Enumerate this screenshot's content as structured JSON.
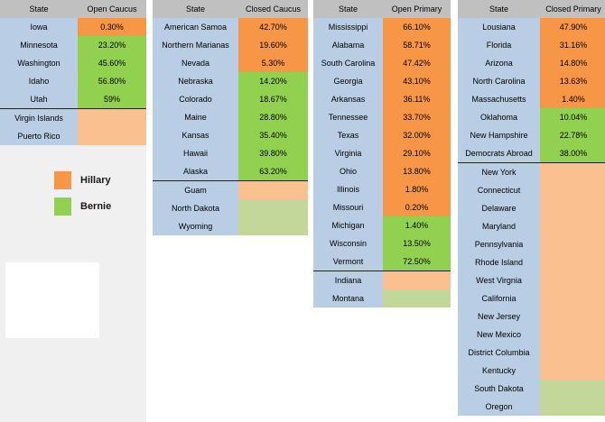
{
  "colors": {
    "hillary": "#f79646",
    "bernie": "#92d050",
    "pending_hillary": "#fac08f",
    "pending_bernie": "#c4d79b",
    "state_cell": "#b9cde4",
    "header": "#c0c0c0"
  },
  "legend": [
    {
      "label": "Hillary",
      "color": "hillary"
    },
    {
      "label": "Bernie",
      "color": "bernie"
    }
  ],
  "tables": [
    {
      "state_header": "State",
      "type_header": "Open Caucus",
      "rows": [
        {
          "state": "Iowa",
          "value": "0.30%",
          "winner": "hillary"
        },
        {
          "state": "Minnesota",
          "value": "23.20%",
          "winner": "bernie"
        },
        {
          "state": "Washington",
          "value": "45.60%",
          "winner": "bernie"
        },
        {
          "state": "Idaho",
          "value": "56.80%",
          "winner": "bernie"
        },
        {
          "state": "Utah",
          "value": "59%",
          "winner": "bernie"
        }
      ],
      "pending": [
        {
          "state": "Virgin Islands",
          "lean": "hillary"
        },
        {
          "state": "Puerto Rico",
          "lean": "hillary"
        }
      ]
    },
    {
      "state_header": "State",
      "type_header": "Closed Caucus",
      "rows": [
        {
          "state": "American Samoa",
          "value": "42.70%",
          "winner": "hillary"
        },
        {
          "state": "Northern Marianas",
          "value": "19.60%",
          "winner": "hillary"
        },
        {
          "state": "Nevada",
          "value": "5.30%",
          "winner": "hillary"
        },
        {
          "state": "Nebraska",
          "value": "14.20%",
          "winner": "bernie"
        },
        {
          "state": "Colorado",
          "value": "18.67%",
          "winner": "bernie"
        },
        {
          "state": "Maine",
          "value": "28.80%",
          "winner": "bernie"
        },
        {
          "state": "Kansas",
          "value": "35.40%",
          "winner": "bernie"
        },
        {
          "state": "Hawaii",
          "value": "39.80%",
          "winner": "bernie"
        },
        {
          "state": "Alaska",
          "value": "63.20%",
          "winner": "bernie"
        }
      ],
      "pending": [
        {
          "state": "Guam",
          "lean": "hillary"
        },
        {
          "state": "North Dakota",
          "lean": "bernie"
        },
        {
          "state": "Wyoming",
          "lean": "bernie"
        }
      ]
    },
    {
      "state_header": "State",
      "type_header": "Open Primary",
      "rows": [
        {
          "state": "Mississippi",
          "value": "66.10%",
          "winner": "hillary"
        },
        {
          "state": "Alabama",
          "value": "58.71%",
          "winner": "hillary"
        },
        {
          "state": "South Carolina",
          "value": "47.42%",
          "winner": "hillary"
        },
        {
          "state": "Georgia",
          "value": "43.10%",
          "winner": "hillary"
        },
        {
          "state": "Arkansas",
          "value": "36.11%",
          "winner": "hillary"
        },
        {
          "state": "Tennessee",
          "value": "33.70%",
          "winner": "hillary"
        },
        {
          "state": "Texas",
          "value": "32.00%",
          "winner": "hillary"
        },
        {
          "state": "Virginia",
          "value": "29.10%",
          "winner": "hillary"
        },
        {
          "state": "Ohio",
          "value": "13.80%",
          "winner": "hillary"
        },
        {
          "state": "Illinois",
          "value": "1.80%",
          "winner": "hillary"
        },
        {
          "state": "Missouri",
          "value": "0.20%",
          "winner": "hillary"
        },
        {
          "state": "Michigan",
          "value": "1.40%",
          "winner": "bernie"
        },
        {
          "state": "Wisconsin",
          "value": "13.50%",
          "winner": "bernie"
        },
        {
          "state": "Vermont",
          "value": "72.50%",
          "winner": "bernie"
        }
      ],
      "pending": [
        {
          "state": "Indiana",
          "lean": "hillary"
        },
        {
          "state": "Montana",
          "lean": "bernie"
        }
      ]
    },
    {
      "state_header": "State",
      "type_header": "Closed Primary",
      "rows": [
        {
          "state": "Lousiana",
          "value": "47.90%",
          "winner": "hillary"
        },
        {
          "state": "Florida",
          "value": "31.16%",
          "winner": "hillary"
        },
        {
          "state": "Arizona",
          "value": "14.80%",
          "winner": "hillary"
        },
        {
          "state": "North Carolina",
          "value": "13.63%",
          "winner": "hillary"
        },
        {
          "state": "Massachusetts",
          "value": "1.40%",
          "winner": "hillary"
        },
        {
          "state": "Oklahoma",
          "value": "10.04%",
          "winner": "bernie"
        },
        {
          "state": "New Hampshire",
          "value": "22.78%",
          "winner": "bernie"
        },
        {
          "state": "Democrats Abroad",
          "value": "38.00%",
          "winner": "bernie"
        }
      ],
      "pending": [
        {
          "state": "New York",
          "lean": "hillary"
        },
        {
          "state": "Connecticut",
          "lean": "hillary"
        },
        {
          "state": "Delaware",
          "lean": "hillary"
        },
        {
          "state": "Maryland",
          "lean": "hillary"
        },
        {
          "state": "Pennsylvania",
          "lean": "hillary"
        },
        {
          "state": "Rhode Island",
          "lean": "hillary"
        },
        {
          "state": "West Virgnia",
          "lean": "hillary"
        },
        {
          "state": "California",
          "lean": "hillary"
        },
        {
          "state": "New Jersey",
          "lean": "hillary"
        },
        {
          "state": "New Mexico",
          "lean": "hillary"
        },
        {
          "state": "District Columbia",
          "lean": "hillary"
        },
        {
          "state": "Kentucky",
          "lean": "hillary"
        },
        {
          "state": "South Dakota",
          "lean": "bernie"
        },
        {
          "state": "Oregon",
          "lean": "bernie"
        }
      ]
    }
  ]
}
